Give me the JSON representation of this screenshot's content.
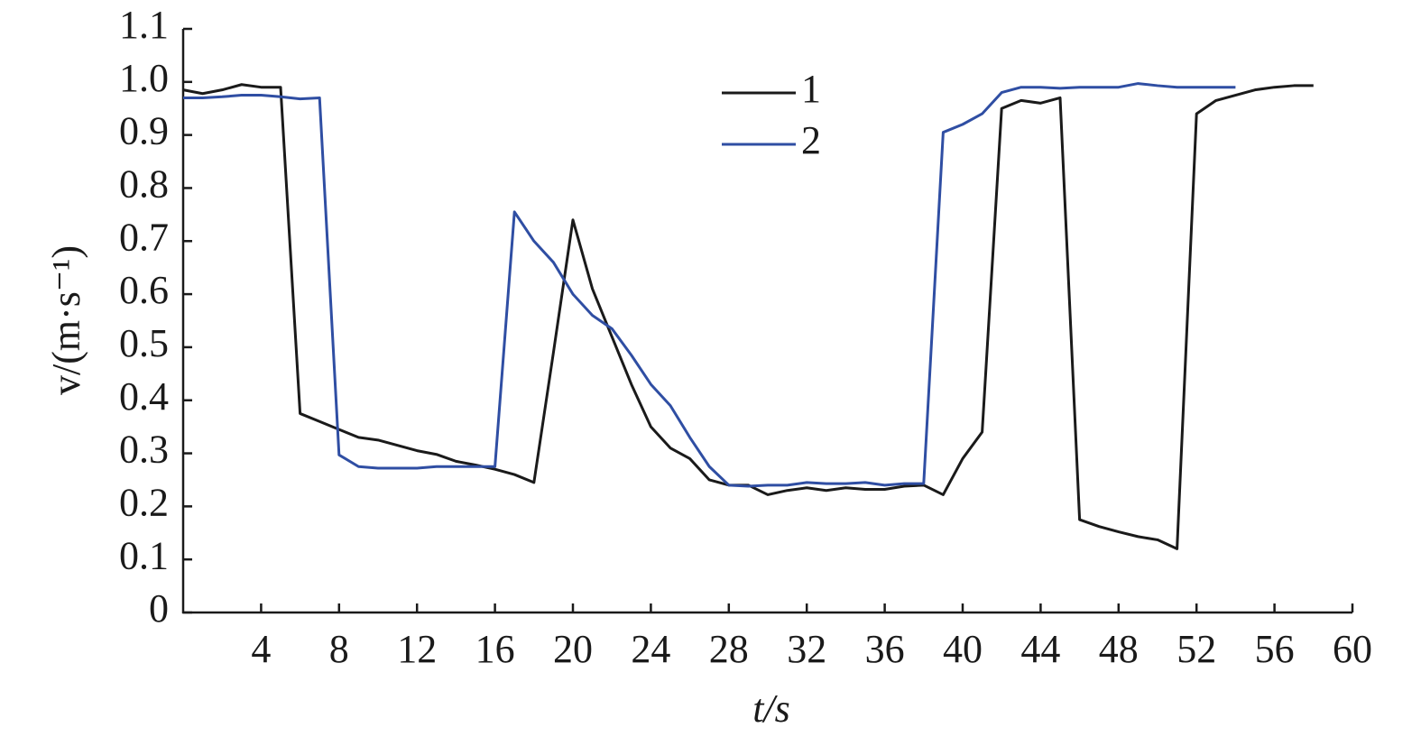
{
  "chart_data": {
    "type": "line",
    "x_label": "t/s",
    "y_label": "v/(m·s⁻¹)",
    "xlim": [
      0,
      60
    ],
    "xticks": [
      4,
      8,
      12,
      16,
      20,
      24,
      28,
      32,
      36,
      40,
      44,
      48,
      52,
      56,
      60
    ],
    "ylim": [
      0,
      1.1
    ],
    "yticks": [
      0,
      0.1,
      0.2,
      0.3,
      0.4,
      0.5,
      0.6,
      0.7,
      0.8,
      0.9,
      {
        "value": 1,
        "label": "1.0"
      },
      1.1
    ],
    "series": [
      {
        "name": "1",
        "color": "#1a1a1a",
        "x": [
          0,
          1,
          2,
          3,
          4,
          5,
          6,
          7,
          8,
          9,
          10,
          11,
          12,
          13,
          14,
          15,
          16,
          17,
          18,
          19,
          20,
          21,
          22,
          23,
          24,
          25,
          26,
          27,
          28,
          29,
          30,
          31,
          32,
          33,
          34,
          35,
          36,
          37,
          38,
          39,
          40,
          41,
          42,
          43,
          44,
          45,
          46,
          47,
          48,
          49,
          50,
          51,
          52,
          53,
          54,
          55,
          56,
          57,
          58
        ],
        "values": [
          0.985,
          0.978,
          0.985,
          0.995,
          0.99,
          0.99,
          0.375,
          0.36,
          0.345,
          0.33,
          0.325,
          0.315,
          0.305,
          0.298,
          0.285,
          0.278,
          0.27,
          0.26,
          0.245,
          0.49,
          0.74,
          0.61,
          0.52,
          0.43,
          0.35,
          0.31,
          0.29,
          0.25,
          0.24,
          0.24,
          0.222,
          0.23,
          0.235,
          0.23,
          0.235,
          0.232,
          0.232,
          0.238,
          0.24,
          0.222,
          0.29,
          0.34,
          0.95,
          0.965,
          0.96,
          0.97,
          0.175,
          0.162,
          0.152,
          0.143,
          0.137,
          0.12,
          0.94,
          0.965,
          0.975,
          0.985,
          0.99,
          0.993,
          0.993
        ]
      },
      {
        "name": "2",
        "color": "#2f4ea3",
        "x": [
          0,
          1,
          2,
          3,
          4,
          5,
          6,
          7,
          8,
          9,
          10,
          11,
          12,
          13,
          14,
          15,
          16,
          17,
          18,
          19,
          20,
          21,
          22,
          23,
          24,
          25,
          26,
          27,
          28,
          29,
          30,
          31,
          32,
          33,
          34,
          35,
          36,
          37,
          38,
          39,
          40,
          41,
          42,
          43,
          44,
          45,
          46,
          47,
          48,
          49,
          50,
          51,
          52,
          53,
          54
        ],
        "values": [
          0.97,
          0.97,
          0.972,
          0.975,
          0.975,
          0.972,
          0.968,
          0.97,
          0.297,
          0.275,
          0.272,
          0.272,
          0.272,
          0.275,
          0.275,
          0.275,
          0.275,
          0.755,
          0.7,
          0.66,
          0.6,
          0.56,
          0.535,
          0.485,
          0.43,
          0.39,
          0.33,
          0.275,
          0.24,
          0.238,
          0.24,
          0.24,
          0.245,
          0.243,
          0.243,
          0.245,
          0.24,
          0.243,
          0.243,
          0.905,
          0.92,
          0.94,
          0.98,
          0.99,
          0.99,
          0.988,
          0.99,
          0.99,
          0.99,
          0.997,
          0.993,
          0.99,
          0.99,
          0.99,
          0.99
        ]
      }
    ]
  }
}
